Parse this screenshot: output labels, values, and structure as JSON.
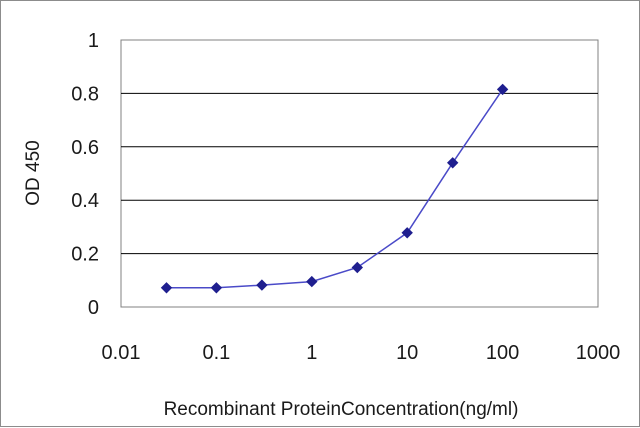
{
  "chart_data": {
    "type": "line",
    "title": "",
    "xlabel": "Recombinant ProteinConcentration(ng/ml)",
    "ylabel": "OD 450",
    "x_scale": "log",
    "xlim": [
      0.01,
      1000
    ],
    "ylim": [
      0,
      1
    ],
    "x_ticks": [
      "0.01",
      "0.1",
      "1",
      "10",
      "100",
      "1000"
    ],
    "y_ticks": [
      "0",
      "0.2",
      "0.4",
      "0.6",
      "0.8",
      "1"
    ],
    "grid": "horizontal",
    "legend": "none",
    "line_color": "#4a4ac8",
    "marker_color": "#1f1f8f",
    "series": [
      {
        "x": [
          0.03,
          0.1,
          0.3,
          1,
          3,
          10,
          30,
          100
        ],
        "y": [
          0.072,
          0.072,
          0.082,
          0.095,
          0.148,
          0.278,
          0.54,
          0.815
        ]
      }
    ]
  }
}
